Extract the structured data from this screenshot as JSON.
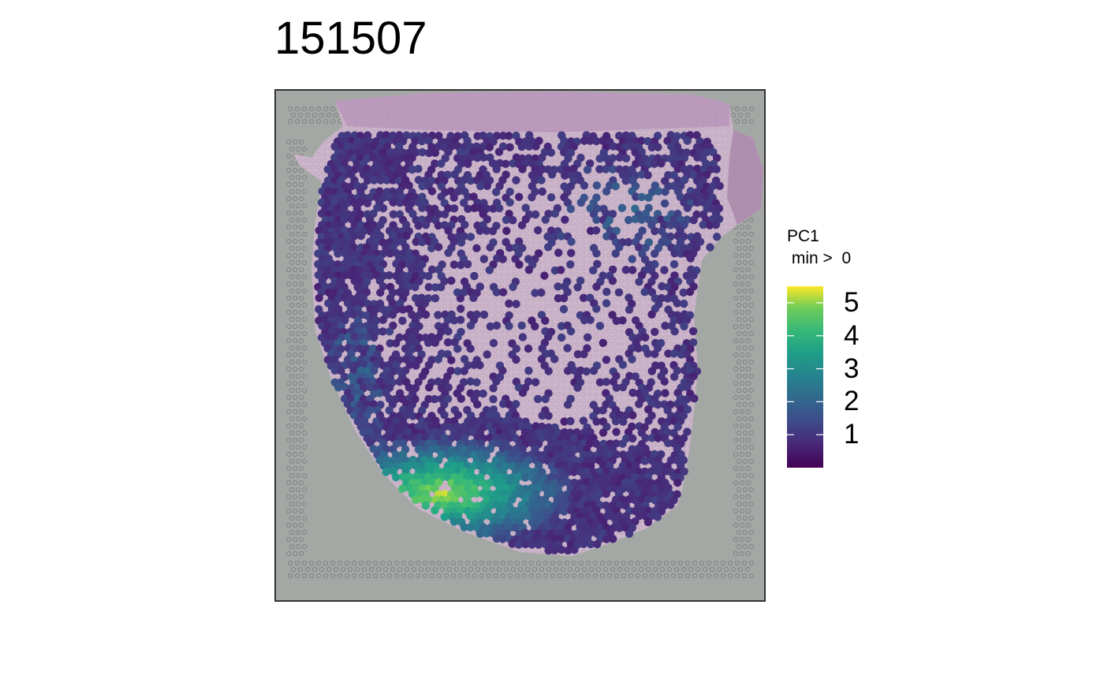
{
  "chart_data": {
    "type": "scatter",
    "title": "151507",
    "background": "tissue image with spot grid",
    "frame_color": "#333333",
    "legend": {
      "title_line1": "PC1",
      "title_line2": " min >  0",
      "placement": "right",
      "colormap": "viridis",
      "range": [
        0,
        5.5
      ],
      "ticks": [
        1,
        2,
        3,
        4,
        5
      ],
      "tick_labels": [
        "1",
        "2",
        "3",
        "4",
        "5"
      ]
    },
    "gradient_band": {
      "low": 0.5,
      "high": 5.3,
      "description": "higher PC1 values concentrated in a band along the lower-left tissue edge"
    },
    "colors": {
      "viridis_low": "#440154",
      "viridis_mid": "#21908C",
      "viridis_high": "#FDE725",
      "tissue_pink": "#cfb6cc",
      "slide_gray": "#a4a8a5"
    }
  }
}
